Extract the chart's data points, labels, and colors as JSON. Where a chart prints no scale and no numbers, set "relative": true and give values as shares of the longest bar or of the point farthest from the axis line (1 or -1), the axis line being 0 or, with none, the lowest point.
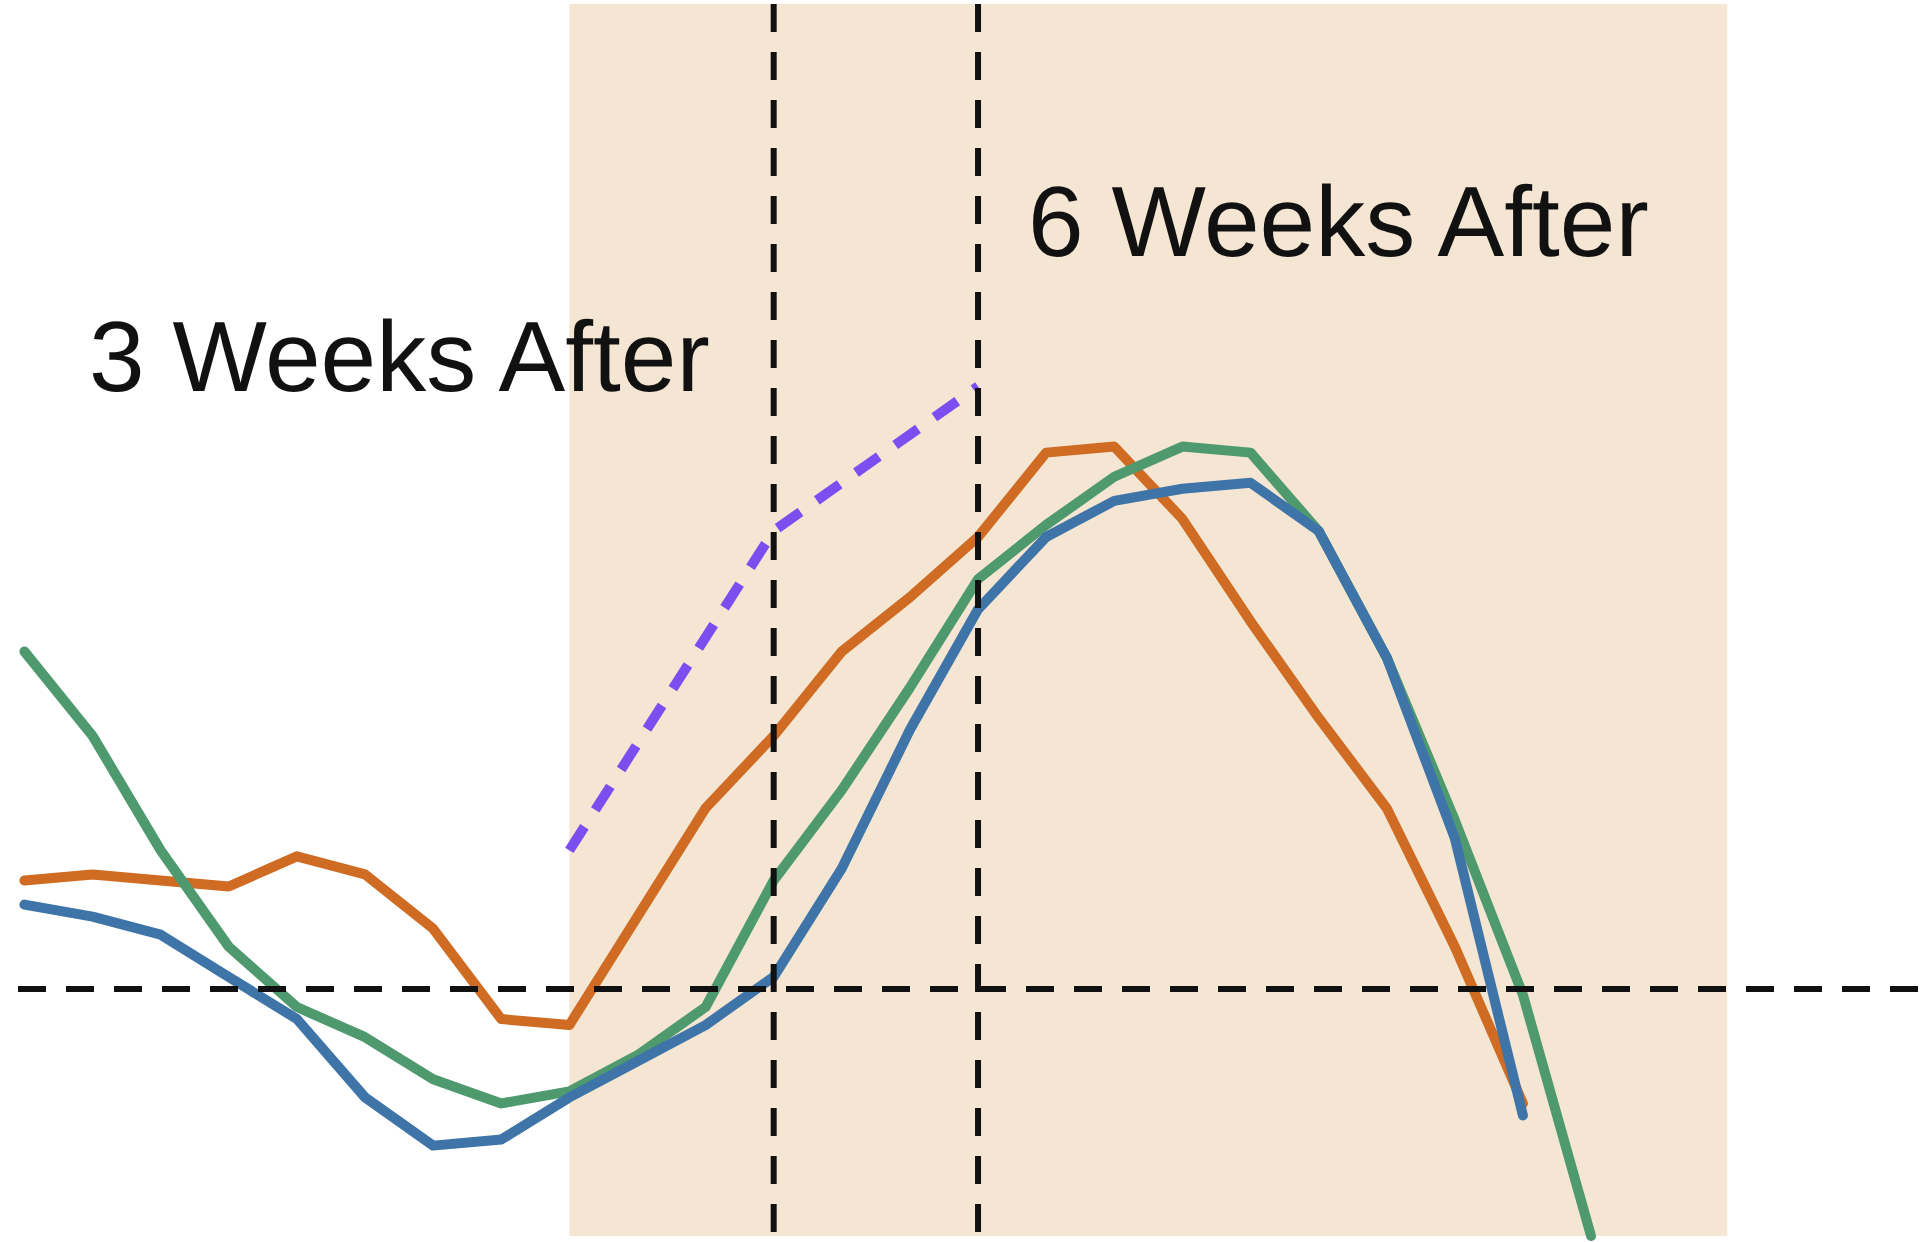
{
  "chart_data": {
    "type": "line",
    "relative": true,
    "grid": false,
    "categories": [
      null,
      null,
      null,
      null,
      null,
      null,
      null,
      null,
      null,
      null,
      null,
      null,
      null,
      null,
      null,
      null,
      null,
      null,
      null,
      null,
      null,
      null,
      null,
      null,
      null,
      null,
      null,
      null
    ],
    "series": [
      {
        "color": "#cf6b22",
        "values": [
          0.18,
          0.19,
          0.18,
          0.17,
          0.22,
          0.19,
          0.1,
          -0.05,
          -0.06,
          0.12,
          0.3,
          0.42,
          0.56,
          0.65,
          0.75,
          0.89,
          0.9,
          0.78,
          0.61,
          0.45,
          0.3,
          0.07,
          -0.19,
          null,
          null,
          null,
          null,
          null
        ]
      },
      {
        "color": "#4e9a6e",
        "values": [
          0.56,
          0.42,
          0.23,
          0.07,
          -0.03,
          -0.08,
          -0.15,
          -0.19,
          -0.17,
          -0.11,
          -0.03,
          0.18,
          0.33,
          0.5,
          0.68,
          0.77,
          0.85,
          0.9,
          0.89,
          0.76,
          0.55,
          0.28,
          -0.01,
          -0.41,
          null,
          null,
          null,
          null
        ]
      },
      {
        "color": "#3f74a8",
        "values": [
          0.14,
          0.12,
          0.09,
          0.02,
          -0.05,
          -0.18,
          -0.26,
          -0.25,
          -0.18,
          -0.12,
          -0.06,
          0.02,
          0.2,
          0.43,
          0.63,
          0.75,
          0.81,
          0.83,
          0.84,
          0.76,
          0.55,
          0.25,
          -0.21,
          null,
          null,
          null,
          null,
          null
        ]
      },
      {
        "color": "#7b4fef",
        "line_style": "dashed",
        "values": [
          null,
          null,
          null,
          null,
          null,
          null,
          null,
          null,
          0.23,
          null,
          null,
          0.76,
          null,
          null,
          1.0,
          null,
          null,
          null,
          null,
          null,
          null,
          null,
          null,
          null,
          null,
          null,
          null,
          null
        ]
      }
    ],
    "line_style": "solid",
    "ref_lines": [
      {
        "axis": "y",
        "value": 0,
        "color": "#111111",
        "line_style": "dashed"
      }
    ],
    "annotations": [
      "3 Weeks After",
      "6 Weeks After"
    ]
  }
}
